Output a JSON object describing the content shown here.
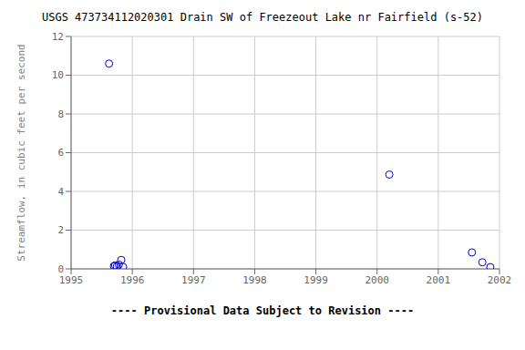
{
  "chart_data": {
    "type": "scatter",
    "title": "USGS 473734112020301 Drain SW of Freezeout Lake nr Fairfield (s-52)",
    "ylabel": "Streamflow, in cubic feet per second",
    "annotations": [
      "---- Provisional Data Subject to Revision ----"
    ],
    "x": [
      1995.62,
      1995.7,
      1995.72,
      1995.75,
      1995.78,
      1995.82,
      1995.85,
      2000.2,
      2001.55,
      2001.72,
      2001.85
    ],
    "values": [
      10.6,
      0.14,
      0.18,
      0.12,
      0.22,
      0.46,
      0.1,
      4.87,
      0.85,
      0.34,
      0.09
    ],
    "color": "#0000cc",
    "marker": "circle",
    "xlim": [
      1995.0,
      2002.0
    ],
    "ylim": [
      0,
      12
    ],
    "xticks": [
      1995,
      1996,
      1997,
      1998,
      1999,
      2000,
      2001,
      2002
    ],
    "yticks": [
      0,
      2,
      4,
      6,
      8,
      10,
      12
    ],
    "grid": true
  }
}
